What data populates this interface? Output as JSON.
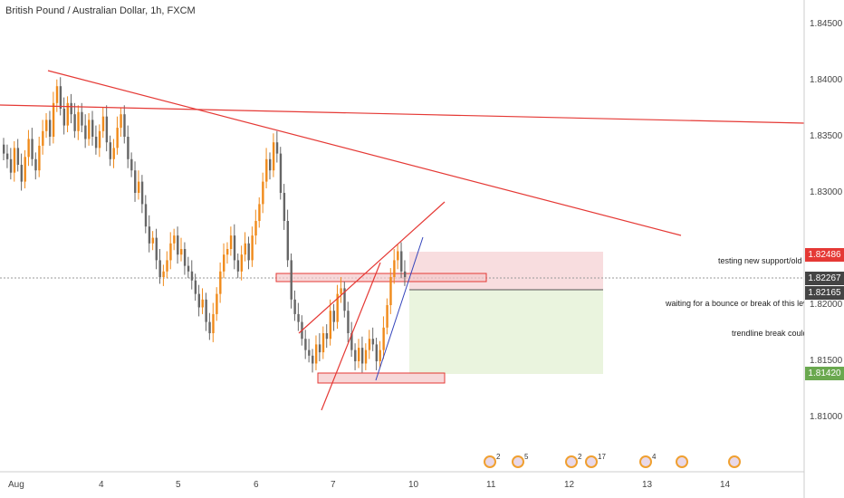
{
  "chart": {
    "title": "British Pound / Australian Dollar, 1h, FXCM",
    "colors": {
      "up": "#f08a1a",
      "down": "#666666",
      "trend": "#e53935",
      "short": "#f4c7c9",
      "long": "#dcedc8",
      "blue": "#3344bb"
    }
  },
  "chart_data": {
    "type": "candlestick",
    "title": "British Pound / Australian Dollar, 1h, FXCM",
    "y_axis": {
      "ticks": [
        "1.84500",
        "1.84000",
        "1.83500",
        "1.83000",
        "1.82000",
        "1.81500",
        "1.81000"
      ],
      "range": [
        1.806,
        1.848
      ]
    },
    "x_axis": {
      "ticks": [
        "Aug",
        "4",
        "5",
        "6",
        "7",
        "10",
        "11",
        "12",
        "13",
        "14"
      ]
    },
    "price_tags": [
      {
        "value": "1.82486",
        "color": "#e53935"
      },
      {
        "value": "1.82267",
        "color": "#444444"
      },
      {
        "value": "1.82165",
        "color": "#444444"
      },
      {
        "value": "1.81420",
        "color": "#6aa84f"
      }
    ],
    "annotations": [
      "testing new support/old r",
      "waiting for a bounce or break of this leve",
      "trendline break could"
    ],
    "events": [
      {
        "count": "2"
      },
      {
        "count": "5"
      },
      {
        "count": "2"
      },
      {
        "count": "17"
      },
      {
        "count": "4"
      },
      {
        "count": ""
      },
      {
        "count": ""
      }
    ],
    "series": [
      {
        "name": "",
        "closes": [
          1.8335,
          1.833,
          1.8318,
          1.834,
          1.8325,
          1.831,
          1.8332,
          1.8348,
          1.833,
          1.832,
          1.8342,
          1.8355,
          1.8365,
          1.835,
          1.838,
          1.8395,
          1.8375,
          1.836,
          1.838,
          1.837,
          1.8355,
          1.8372,
          1.836,
          1.8348,
          1.8365,
          1.835,
          1.834,
          1.8355,
          1.8368,
          1.8345,
          1.833,
          1.834,
          1.8358,
          1.837,
          1.835,
          1.833,
          1.832,
          1.83,
          1.831,
          1.829,
          1.827,
          1.8255,
          1.826,
          1.824,
          1.8225,
          1.823,
          1.824,
          1.8255,
          1.8262,
          1.8245,
          1.825,
          1.8235,
          1.823,
          1.8222,
          1.821,
          1.8198,
          1.8205,
          1.8185,
          1.8175,
          1.8192,
          1.821,
          1.823,
          1.8245,
          1.825,
          1.8262,
          1.824,
          1.823,
          1.8245,
          1.8255,
          1.824,
          1.8262,
          1.8275,
          1.829,
          1.831,
          1.833,
          1.832,
          1.8345,
          1.8335,
          1.83,
          1.8275,
          1.824,
          1.8205,
          1.8192,
          1.8185,
          1.817,
          1.816,
          1.8155,
          1.8148,
          1.8165,
          1.8158,
          1.8175,
          1.817,
          1.8195,
          1.8185,
          1.821,
          1.8215,
          1.8195,
          1.8175,
          1.816,
          1.815,
          1.8162,
          1.8148,
          1.816,
          1.817,
          1.8165,
          1.815,
          1.816,
          1.818,
          1.82,
          1.8225,
          1.824,
          1.8248,
          1.823,
          1.8225
        ]
      }
    ]
  }
}
